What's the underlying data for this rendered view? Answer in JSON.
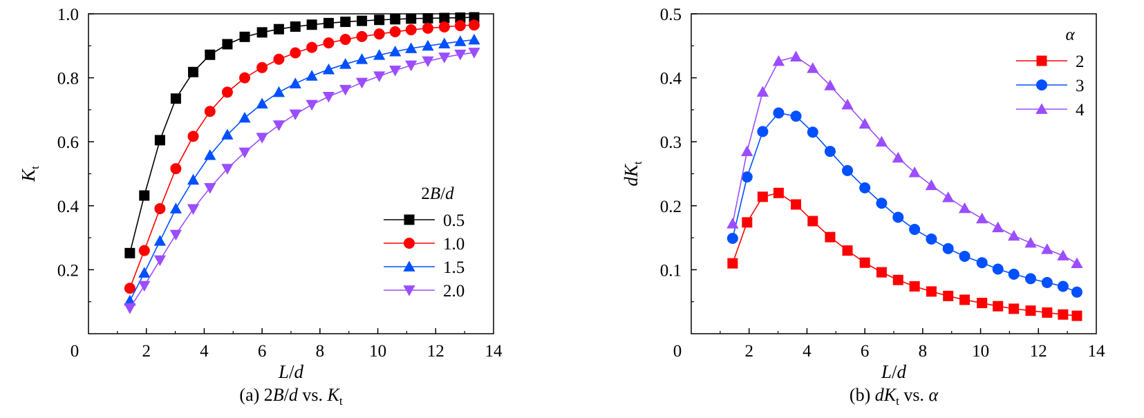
{
  "figure": {
    "chart_data": [
      {
        "type": "line",
        "xlabel": "L/d",
        "ylabel": "Kt",
        "xlim": [
          0,
          14
        ],
        "ylim": [
          0,
          1.0
        ],
        "xticks": [
          "0",
          "2",
          "4",
          "6",
          "8",
          "10",
          "12",
          "14"
        ],
        "yticks": [
          "0.2",
          "0.4",
          "0.6",
          "0.8",
          "1.0"
        ],
        "caption": "(a) 2B/d vs. Kt",
        "legend_title": "2B/d",
        "legend_position": "lower-right",
        "grid": false,
        "x": [
          1.43,
          1.93,
          2.47,
          3.02,
          3.62,
          4.2,
          4.8,
          5.4,
          6.0,
          6.58,
          7.15,
          7.72,
          8.3,
          8.88,
          9.45,
          10.05,
          10.6,
          11.15,
          11.73,
          12.3,
          12.85,
          13.33
        ],
        "series": [
          {
            "name": "0.5",
            "color": "#000000",
            "marker": "square",
            "values": [
              0.252,
              0.432,
              0.605,
              0.735,
              0.818,
              0.872,
              0.905,
              0.928,
              0.942,
              0.952,
              0.96,
              0.966,
              0.971,
              0.975,
              0.978,
              0.981,
              0.983,
              0.985,
              0.986,
              0.987,
              0.988,
              0.989
            ]
          },
          {
            "name": "1.0",
            "color": "#ff0000",
            "marker": "circle",
            "values": [
              0.142,
              0.26,
              0.391,
              0.516,
              0.617,
              0.695,
              0.755,
              0.8,
              0.832,
              0.858,
              0.878,
              0.895,
              0.909,
              0.92,
              0.929,
              0.937,
              0.944,
              0.95,
              0.955,
              0.959,
              0.963,
              0.965
            ]
          },
          {
            "name": "1.5",
            "color": "#0050ff",
            "marker": "triangle-up",
            "values": [
              0.103,
              0.19,
              0.29,
              0.391,
              0.481,
              0.558,
              0.622,
              0.675,
              0.719,
              0.755,
              0.782,
              0.806,
              0.826,
              0.843,
              0.858,
              0.871,
              0.882,
              0.892,
              0.9,
              0.907,
              0.914,
              0.919
            ]
          },
          {
            "name": "2.0",
            "color": "#9b4dff",
            "marker": "triangle-down",
            "values": [
              0.08,
              0.15,
              0.23,
              0.31,
              0.39,
              0.456,
              0.516,
              0.567,
              0.613,
              0.652,
              0.686,
              0.716,
              0.741,
              0.763,
              0.785,
              0.805,
              0.823,
              0.839,
              0.852,
              0.864,
              0.873,
              0.879
            ]
          }
        ]
      },
      {
        "type": "line",
        "xlabel": "L/d",
        "ylabel": "dKt",
        "xlim": [
          0,
          14
        ],
        "ylim": [
          0,
          0.5
        ],
        "xticks": [
          "0",
          "2",
          "4",
          "6",
          "8",
          "10",
          "12",
          "14"
        ],
        "yticks": [
          "0.1",
          "0.2",
          "0.3",
          "0.4",
          "0.5"
        ],
        "caption": "(b) dKt vs. α",
        "legend_title": "α",
        "legend_position": "top-right",
        "grid": false,
        "x": [
          1.43,
          1.93,
          2.47,
          3.02,
          3.62,
          4.2,
          4.8,
          5.4,
          6.0,
          6.58,
          7.15,
          7.72,
          8.3,
          8.88,
          9.45,
          10.05,
          10.6,
          11.15,
          11.73,
          12.3,
          12.85,
          13.33
        ],
        "series": [
          {
            "name": "2",
            "color": "#ff0000",
            "marker": "square",
            "values": [
              0.11,
              0.174,
              0.214,
              0.22,
              0.202,
              0.176,
              0.151,
              0.13,
              0.111,
              0.096,
              0.084,
              0.074,
              0.066,
              0.059,
              0.053,
              0.048,
              0.043,
              0.039,
              0.036,
              0.033,
              0.03,
              0.028
            ]
          },
          {
            "name": "3",
            "color": "#0050ff",
            "marker": "circle",
            "values": [
              0.149,
              0.245,
              0.316,
              0.345,
              0.34,
              0.315,
              0.285,
              0.255,
              0.228,
              0.204,
              0.182,
              0.163,
              0.148,
              0.133,
              0.121,
              0.111,
              0.101,
              0.093,
              0.086,
              0.08,
              0.074,
              0.065
            ]
          },
          {
            "name": "4",
            "color": "#9b4dff",
            "marker": "triangle-up",
            "values": [
              0.172,
              0.285,
              0.378,
              0.426,
              0.433,
              0.415,
              0.388,
              0.358,
              0.328,
              0.3,
              0.275,
              0.252,
              0.232,
              0.213,
              0.196,
              0.18,
              0.166,
              0.153,
              0.142,
              0.132,
              0.122,
              0.11
            ]
          }
        ]
      }
    ]
  }
}
